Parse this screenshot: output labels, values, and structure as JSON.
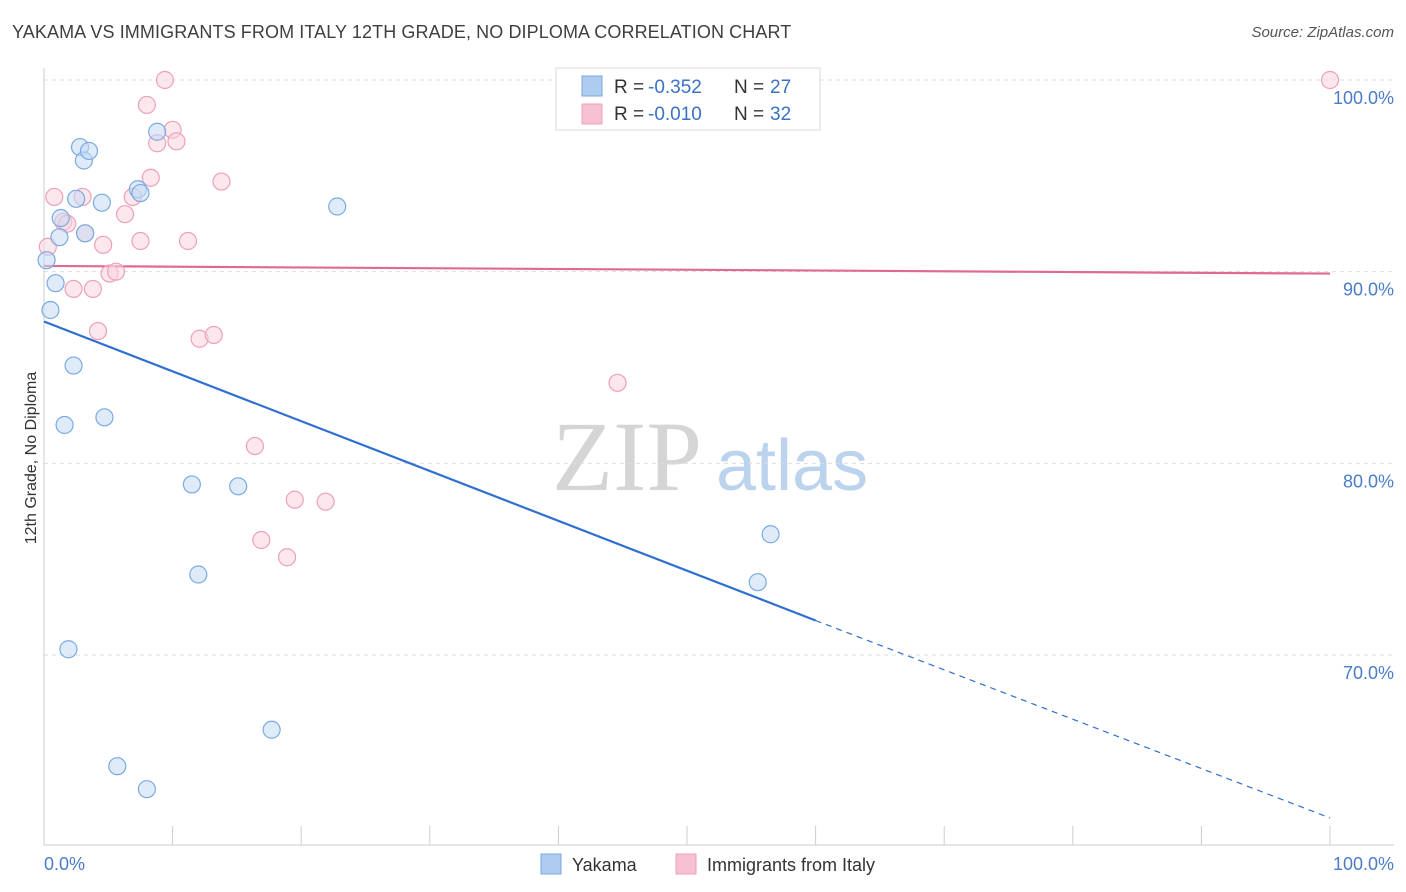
{
  "title": "YAKAMA VS IMMIGRANTS FROM ITALY 12TH GRADE, NO DIPLOMA CORRELATION CHART",
  "source": "Source: ZipAtlas.com",
  "watermark": {
    "part1": "ZIP",
    "part2": "atlas"
  },
  "legend": {
    "r_label": "R =",
    "n_label": "N =",
    "rows": [
      {
        "r": "-0.352",
        "n": "27",
        "color": "#aecbf0"
      },
      {
        "r": "-0.010",
        "n": "32",
        "color": "#f6c1d2"
      }
    ]
  },
  "bottom_legend": [
    "Yakama",
    "Immigrants from Italy"
  ],
  "chart_data": {
    "type": "scatter",
    "title": "YAKAMA VS IMMIGRANTS FROM ITALY 12TH GRADE, NO DIPLOMA CORRELATION CHART",
    "xlabel": "",
    "ylabel": "12th Grade, No Diploma",
    "xlim": [
      0,
      100
    ],
    "ylim": [
      61,
      101
    ],
    "x_tick_labels": [
      "0.0%",
      "100.0%"
    ],
    "y_ticks": [
      {
        "value": 100,
        "label": "100.0%"
      },
      {
        "value": 90,
        "label": "90.0%"
      },
      {
        "value": 80,
        "label": "80.0%"
      },
      {
        "value": 70,
        "label": "70.0%"
      }
    ],
    "series": [
      {
        "name": "Yakama",
        "color": "#7aaae3",
        "fill": "#c5daf4",
        "line_color": "#2f6fd0",
        "trend": {
          "x0": 0,
          "y0": 87.4,
          "x1": 60,
          "y1": 71.8,
          "x_end": 100,
          "y_end": 61.5
        },
        "points": [
          [
            0.2,
            90.6
          ],
          [
            0.5,
            88.0
          ],
          [
            0.9,
            89.4
          ],
          [
            1.2,
            91.8
          ],
          [
            1.3,
            92.8
          ],
          [
            1.6,
            82.0
          ],
          [
            1.9,
            70.3
          ],
          [
            2.3,
            85.1
          ],
          [
            2.5,
            93.8
          ],
          [
            2.8,
            96.5
          ],
          [
            3.1,
            95.8
          ],
          [
            3.2,
            92.0
          ],
          [
            3.5,
            96.3
          ],
          [
            4.5,
            93.6
          ],
          [
            4.7,
            82.4
          ],
          [
            5.7,
            64.2
          ],
          [
            7.3,
            94.3
          ],
          [
            7.5,
            94.1
          ],
          [
            8.0,
            63.0
          ],
          [
            8.8,
            97.3
          ],
          [
            11.5,
            78.9
          ],
          [
            12.0,
            74.2
          ],
          [
            15.1,
            78.8
          ],
          [
            17.7,
            66.1
          ],
          [
            22.8,
            93.4
          ],
          [
            55.5,
            73.8
          ],
          [
            56.5,
            76.3
          ]
        ]
      },
      {
        "name": "Immigrants from Italy",
        "color": "#ef9fb9",
        "fill": "#f9d3df",
        "line_color": "#e0698f",
        "trend": {
          "x0": 0,
          "y0": 90.3,
          "x1": 100,
          "y1": 89.9
        },
        "points": [
          [
            0.3,
            91.3
          ],
          [
            0.8,
            93.9
          ],
          [
            1.5,
            92.6
          ],
          [
            1.8,
            92.5
          ],
          [
            2.3,
            89.1
          ],
          [
            3.0,
            93.9
          ],
          [
            3.2,
            92.0
          ],
          [
            3.8,
            89.1
          ],
          [
            4.2,
            86.9
          ],
          [
            4.6,
            91.4
          ],
          [
            5.1,
            89.9
          ],
          [
            5.6,
            90.0
          ],
          [
            6.3,
            93.0
          ],
          [
            6.9,
            93.9
          ],
          [
            7.5,
            91.6
          ],
          [
            8.0,
            98.7
          ],
          [
            8.3,
            94.9
          ],
          [
            8.8,
            96.7
          ],
          [
            9.4,
            100.0
          ],
          [
            10.0,
            97.4
          ],
          [
            10.3,
            96.8
          ],
          [
            11.2,
            91.6
          ],
          [
            12.1,
            86.5
          ],
          [
            13.2,
            86.7
          ],
          [
            13.8,
            94.7
          ],
          [
            16.4,
            80.9
          ],
          [
            16.9,
            76.0
          ],
          [
            18.9,
            75.1
          ],
          [
            19.5,
            78.1
          ],
          [
            21.9,
            78.0
          ],
          [
            44.6,
            84.2
          ],
          [
            100.0,
            100.0
          ]
        ]
      }
    ]
  }
}
